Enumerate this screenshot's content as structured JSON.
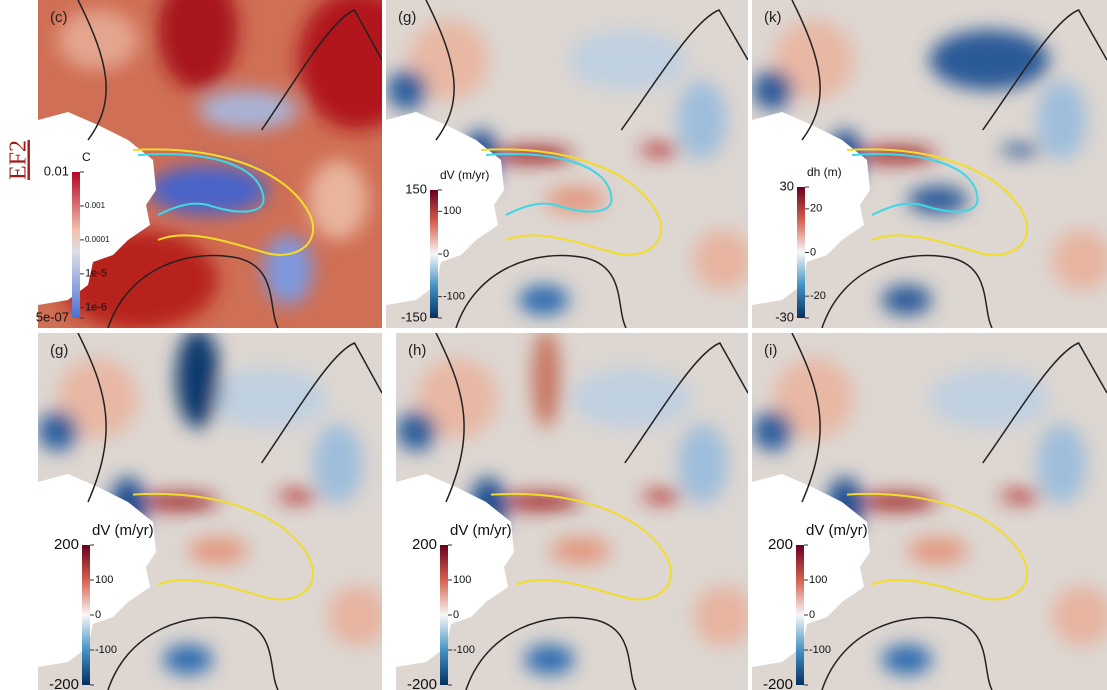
{
  "side_label": "EF2",
  "panels": [
    {
      "label": "(c)",
      "colorbar": {
        "title": "C",
        "scale": "log",
        "ticks": [
          0.01,
          0.001,
          0.0001,
          {
            "value": 1e-05,
            "label": "1e-5"
          },
          {
            "value": 1e-06,
            "label": "1e-6"
          },
          {
            "value": 5e-07,
            "label": "5e-07"
          }
        ]
      }
    },
    {
      "label": "(g)",
      "colorbar": {
        "title": "dV (m/yr)",
        "scale": "linear",
        "ticks": [
          150,
          100,
          0,
          -100,
          -150
        ]
      }
    },
    {
      "label": "(k)",
      "colorbar": {
        "title": "dh (m)",
        "scale": "linear",
        "ticks": [
          30,
          20,
          0,
          -20,
          -30
        ]
      }
    },
    {
      "label": "(g)",
      "colorbar": {
        "title": "dV (m/yr)",
        "scale": "linear",
        "ticks": [
          200,
          100,
          0,
          -100,
          -200
        ]
      }
    },
    {
      "label": "(h)",
      "colorbar": {
        "title": "dV (m/yr)",
        "scale": "linear",
        "ticks": [
          200,
          100,
          0,
          -100,
          -200
        ]
      }
    },
    {
      "label": "(i)",
      "colorbar": {
        "title": "dV (m/yr)",
        "scale": "linear",
        "ticks": [
          200,
          100,
          0,
          -100,
          -200
        ]
      }
    }
  ]
}
